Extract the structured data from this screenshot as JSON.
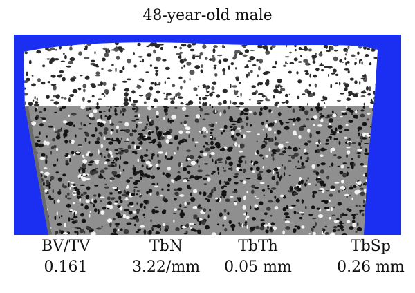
{
  "title": "48-year-old male",
  "image": {
    "name": "micro-ct-bone-section",
    "colors": {
      "background": "#1a2ff2",
      "cortical": "#ffffff",
      "trabecular": "#8f8f8f",
      "edge": "#7d7d7d",
      "dark_speckle": "#141414",
      "light_speckle": "#f2f2f2",
      "cortical_speckle": "#2a2a2a"
    }
  },
  "metrics": [
    {
      "name": "BV/TV",
      "value": "0.161"
    },
    {
      "name": "TbN",
      "value": "3.22/mm"
    },
    {
      "name": "TbTh",
      "value": "0.05 mm"
    },
    {
      "name": "TbSp",
      "value": "0.26 mm"
    }
  ]
}
